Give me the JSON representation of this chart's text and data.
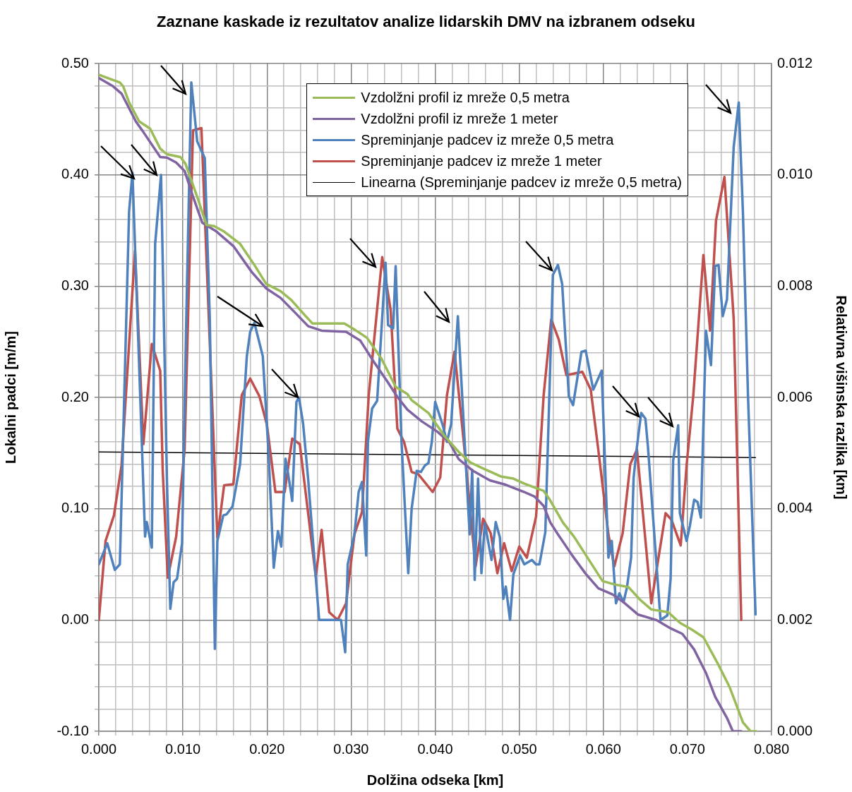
{
  "chart_data": {
    "type": "line",
    "title": "Zaznane kaskade iz rezultatov analize lidarskih DMV na izbranem odseku",
    "xlabel": "Dolžina odseka [km]",
    "ylabel": "Lokalni padci [m/m]",
    "y2label": "Relativna višinska razlika [km]",
    "xlim": [
      0,
      0.08
    ],
    "xticks": [
      {
        "value": 0,
        "label": "0.000"
      },
      {
        "value": 0.002,
        "label": null
      },
      {
        "value": 0.004,
        "label": null
      },
      {
        "value": 0.006,
        "label": null
      },
      {
        "value": 0.008,
        "label": null
      },
      {
        "value": 0.01,
        "label": "0.010"
      },
      {
        "value": 0.012,
        "label": null
      },
      {
        "value": 0.014,
        "label": null
      },
      {
        "value": 0.016,
        "label": null
      },
      {
        "value": 0.018,
        "label": null
      },
      {
        "value": 0.02,
        "label": "0.020"
      },
      {
        "value": 0.022,
        "label": null
      },
      {
        "value": 0.024,
        "label": null
      },
      {
        "value": 0.026,
        "label": null
      },
      {
        "value": 0.028,
        "label": null
      },
      {
        "value": 0.03,
        "label": "0.030"
      },
      {
        "value": 0.032,
        "label": null
      },
      {
        "value": 0.034,
        "label": null
      },
      {
        "value": 0.036,
        "label": null
      },
      {
        "value": 0.038,
        "label": null
      },
      {
        "value": 0.04,
        "label": "0.040"
      },
      {
        "value": 0.042,
        "label": null
      },
      {
        "value": 0.044,
        "label": null
      },
      {
        "value": 0.046,
        "label": null
      },
      {
        "value": 0.048,
        "label": null
      },
      {
        "value": 0.05,
        "label": "0.050"
      },
      {
        "value": 0.052,
        "label": null
      },
      {
        "value": 0.054,
        "label": null
      },
      {
        "value": 0.056,
        "label": null
      },
      {
        "value": 0.058,
        "label": null
      },
      {
        "value": 0.06,
        "label": "0.060"
      },
      {
        "value": 0.062,
        "label": null
      },
      {
        "value": 0.064,
        "label": null
      },
      {
        "value": 0.066,
        "label": null
      },
      {
        "value": 0.068,
        "label": null
      },
      {
        "value": 0.07,
        "label": "0.070"
      },
      {
        "value": 0.072,
        "label": null
      },
      {
        "value": 0.074,
        "label": null
      },
      {
        "value": 0.076,
        "label": null
      },
      {
        "value": 0.078,
        "label": null
      },
      {
        "value": 0.08,
        "label": "0.080"
      }
    ],
    "ylim": [
      -0.1,
      0.5
    ],
    "yticks": [
      {
        "value": -0.1,
        "label": "-0.10"
      },
      {
        "value": -0.08,
        "label": null
      },
      {
        "value": -0.06,
        "label": null
      },
      {
        "value": -0.04,
        "label": null
      },
      {
        "value": -0.02,
        "label": null
      },
      {
        "value": 0,
        "label": "0.00"
      },
      {
        "value": 0.02,
        "label": null
      },
      {
        "value": 0.04,
        "label": null
      },
      {
        "value": 0.06,
        "label": null
      },
      {
        "value": 0.08,
        "label": null
      },
      {
        "value": 0.1,
        "label": "0.10"
      },
      {
        "value": 0.12,
        "label": null
      },
      {
        "value": 0.14,
        "label": null
      },
      {
        "value": 0.16,
        "label": null
      },
      {
        "value": 0.18,
        "label": null
      },
      {
        "value": 0.2,
        "label": "0.20"
      },
      {
        "value": 0.22,
        "label": null
      },
      {
        "value": 0.24,
        "label": null
      },
      {
        "value": 0.26,
        "label": null
      },
      {
        "value": 0.28,
        "label": null
      },
      {
        "value": 0.3,
        "label": "0.30"
      },
      {
        "value": 0.32,
        "label": null
      },
      {
        "value": 0.34,
        "label": null
      },
      {
        "value": 0.36,
        "label": null
      },
      {
        "value": 0.38,
        "label": null
      },
      {
        "value": 0.4,
        "label": "0.40"
      },
      {
        "value": 0.42,
        "label": null
      },
      {
        "value": 0.44,
        "label": null
      },
      {
        "value": 0.46,
        "label": null
      },
      {
        "value": 0.48,
        "label": null
      },
      {
        "value": 0.5,
        "label": "0.50"
      }
    ],
    "y2lim": [
      0,
      0.012
    ],
    "y2ticks": [
      {
        "value": 0,
        "label": "0.000"
      },
      {
        "value": 0.002,
        "label": "0.002"
      },
      {
        "value": 0.004,
        "label": "0.004"
      },
      {
        "value": 0.006,
        "label": "0.006"
      },
      {
        "value": 0.008,
        "label": "0.008"
      },
      {
        "value": 0.01,
        "label": "0.010"
      },
      {
        "value": 0.012,
        "label": "0.012"
      }
    ],
    "grid": true,
    "legend": "top right",
    "marker": "none",
    "series": [
      {
        "name": "Vzdolžni profil iz mreže 0,5 metra",
        "color": "#9bbb59",
        "axis": "y2",
        "x": [
          0,
          0.0025,
          0.0029,
          0.0036,
          0.0048,
          0.0061,
          0.0073,
          0.0081,
          0.0097,
          0.0103,
          0.0118,
          0.0128,
          0.0137,
          0.0149,
          0.0168,
          0.0185,
          0.0199,
          0.0216,
          0.0229,
          0.0246,
          0.0254,
          0.0292,
          0.0305,
          0.0319,
          0.0336,
          0.0353,
          0.0367,
          0.0372,
          0.0392,
          0.0411,
          0.0428,
          0.0442,
          0.0456,
          0.0478,
          0.0493,
          0.0506,
          0.0529,
          0.0536,
          0.0552,
          0.0565,
          0.0585,
          0.0599,
          0.0613,
          0.063,
          0.0644,
          0.0657,
          0.0677,
          0.0691,
          0.0705,
          0.0719,
          0.0736,
          0.075,
          0.0766,
          0.0775,
          0.0782
        ],
        "values": [
          0.0118,
          0.01166,
          0.01159,
          0.0113,
          0.01096,
          0.01083,
          0.01047,
          0.01037,
          0.01032,
          0.0102,
          0.00956,
          0.0091,
          0.00908,
          0.00898,
          0.00876,
          0.00838,
          0.00804,
          0.00791,
          0.00775,
          0.00746,
          0.00733,
          0.00733,
          0.00721,
          0.00707,
          0.0067,
          0.00619,
          0.00606,
          0.00595,
          0.00572,
          0.00531,
          0.00502,
          0.00483,
          0.00473,
          0.00458,
          0.00454,
          0.00445,
          0.00432,
          0.00417,
          0.00375,
          0.0035,
          0.00303,
          0.0027,
          0.00264,
          0.00259,
          0.00236,
          0.00219,
          0.00214,
          0.00195,
          0.00183,
          0.00169,
          0.00122,
          0.0008,
          0.00016,
          0,
          0
        ]
      },
      {
        "name": "Vzdolžni profil iz mreže 1 meter",
        "color": "#8064a2",
        "axis": "y2",
        "x": [
          0,
          0.0017,
          0.0027,
          0.0044,
          0.0052,
          0.0073,
          0.0081,
          0.0092,
          0.0102,
          0.0112,
          0.0123,
          0.014,
          0.016,
          0.0182,
          0.0199,
          0.0216,
          0.0233,
          0.0249,
          0.0265,
          0.0294,
          0.0311,
          0.0327,
          0.0342,
          0.0355,
          0.0367,
          0.0384,
          0.0403,
          0.0417,
          0.0428,
          0.0445,
          0.0465,
          0.0484,
          0.0506,
          0.0518,
          0.0529,
          0.0537,
          0.0546,
          0.0563,
          0.0579,
          0.0594,
          0.0611,
          0.0624,
          0.0641,
          0.0663,
          0.068,
          0.0694,
          0.0708,
          0.0722,
          0.0733,
          0.0747,
          0.0754,
          0.0764
        ],
        "values": [
          0.01174,
          0.01159,
          0.01146,
          0.01096,
          0.01079,
          0.01032,
          0.01031,
          0.01022,
          0.01007,
          0.00961,
          0.00914,
          0.00898,
          0.00872,
          0.00825,
          0.00796,
          0.00779,
          0.00753,
          0.00728,
          0.0072,
          0.00718,
          0.00702,
          0.00664,
          0.00631,
          0.00601,
          0.00578,
          0.00557,
          0.00538,
          0.00519,
          0.00489,
          0.00468,
          0.00451,
          0.00443,
          0.0043,
          0.00422,
          0.00405,
          0.00375,
          0.00354,
          0.00316,
          0.00283,
          0.00257,
          0.00246,
          0.00232,
          0.0021,
          0.002,
          0.00185,
          0.00175,
          0.00147,
          0.00105,
          0.00062,
          0.00024,
          0,
          0
        ]
      },
      {
        "name": "Spreminjanje padcev iz mreže 0,5 metra",
        "color": "#4f81bd",
        "x": [
          0,
          0.001,
          0.0019,
          0.0025,
          0.0036,
          0.004,
          0.0055,
          0.0057,
          0.0063,
          0.0067,
          0.0074,
          0.0081,
          0.0085,
          0.0089,
          0.0093,
          0.0099,
          0.0104,
          0.011,
          0.0117,
          0.0126,
          0.0132,
          0.0138,
          0.0141,
          0.0148,
          0.0152,
          0.0159,
          0.0168,
          0.0176,
          0.018,
          0.0185,
          0.0195,
          0.0202,
          0.0208,
          0.0213,
          0.0217,
          0.0222,
          0.0225,
          0.023,
          0.0235,
          0.0238,
          0.0243,
          0.0249,
          0.0262,
          0.0288,
          0.0293,
          0.0296,
          0.0304,
          0.0309,
          0.0313,
          0.0318,
          0.032,
          0.0325,
          0.0331,
          0.0341,
          0.0344,
          0.035,
          0.0353,
          0.036,
          0.0368,
          0.0372,
          0.0378,
          0.0383,
          0.0388,
          0.0392,
          0.0396,
          0.04,
          0.0409,
          0.0414,
          0.0419,
          0.0427,
          0.0441,
          0.0444,
          0.0447,
          0.0451,
          0.0455,
          0.0459,
          0.0467,
          0.0472,
          0.0477,
          0.0481,
          0.0484,
          0.0489,
          0.0493,
          0.0501,
          0.0506,
          0.0515,
          0.052,
          0.0524,
          0.0531,
          0.054,
          0.0546,
          0.0551,
          0.0559,
          0.0564,
          0.0574,
          0.0579,
          0.0588,
          0.0598,
          0.0606,
          0.061,
          0.0615,
          0.0619,
          0.0624,
          0.0628,
          0.0633,
          0.0636,
          0.064,
          0.0645,
          0.065,
          0.0653,
          0.0668,
          0.0676,
          0.068,
          0.0683,
          0.0689,
          0.0691,
          0.0699,
          0.0703,
          0.0708,
          0.0712,
          0.0716,
          0.0722,
          0.0728,
          0.0733,
          0.0737,
          0.0742,
          0.0747,
          0.0755,
          0.0761,
          0.0766,
          0.0772,
          0.0781
        ],
        "values": [
          0.05,
          0.069,
          0.045,
          0.05,
          0.367,
          0.402,
          0.075,
          0.088,
          0.065,
          0.338,
          0.4,
          0.126,
          0.01,
          0.034,
          0.037,
          0.069,
          0.27,
          0.483,
          0.43,
          0.415,
          0.27,
          -0.026,
          0.071,
          0.094,
          0.095,
          0.102,
          0.14,
          0.237,
          0.259,
          0.267,
          0.237,
          0.148,
          0.047,
          0.08,
          0.066,
          0.145,
          0.132,
          0.107,
          0.196,
          0.2,
          0.176,
          0.126,
          0,
          0,
          -0.029,
          0.05,
          0.077,
          0.115,
          0.124,
          0.058,
          0.16,
          0.19,
          0.197,
          0.321,
          0.265,
          0.262,
          0.318,
          0.16,
          0.042,
          0.1,
          0.134,
          0.133,
          0.139,
          0.141,
          0.16,
          0.196,
          0.175,
          0.16,
          0.176,
          0.273,
          0.077,
          0.135,
          0.036,
          0.127,
          0.042,
          0.087,
          0.054,
          0.088,
          0.074,
          0.019,
          0.03,
          0,
          0.041,
          0.058,
          0.05,
          0.054,
          0.05,
          0.05,
          0.079,
          0.31,
          0.319,
          0.302,
          0.201,
          0.193,
          0.241,
          0.242,
          0.207,
          0.224,
          0.056,
          0.071,
          0.015,
          0.024,
          0.016,
          0.029,
          0.056,
          0.128,
          0.156,
          0.186,
          0.181,
          0.156,
          0,
          0.004,
          0.037,
          0.143,
          0.175,
          0.096,
          0.071,
          0.085,
          0.108,
          0.106,
          0.092,
          0.26,
          0.229,
          0.318,
          0.319,
          0.273,
          0.288,
          0.425,
          0.465,
          0.366,
          0.202,
          0.005
        ]
      },
      {
        "name": "Spreminjanje padcev iz mreže 1 meter",
        "color": "#c0504d",
        "x": [
          0,
          0.0008,
          0.0018,
          0.0027,
          0.0043,
          0.0053,
          0.0063,
          0.0073,
          0.0076,
          0.0082,
          0.0092,
          0.0102,
          0.0112,
          0.0122,
          0.0141,
          0.0149,
          0.016,
          0.017,
          0.018,
          0.0191,
          0.02,
          0.021,
          0.0221,
          0.023,
          0.0239,
          0.0258,
          0.0265,
          0.0274,
          0.0284,
          0.0294,
          0.0304,
          0.0313,
          0.0321,
          0.0337,
          0.0347,
          0.0355,
          0.0363,
          0.0372,
          0.038,
          0.0397,
          0.0406,
          0.0414,
          0.0423,
          0.0434,
          0.0448,
          0.0457,
          0.0466,
          0.0474,
          0.0482,
          0.0491,
          0.05,
          0.0509,
          0.052,
          0.0529,
          0.0538,
          0.0547,
          0.0556,
          0.0575,
          0.0585,
          0.0594,
          0.0606,
          0.0613,
          0.0623,
          0.0632,
          0.064,
          0.0657,
          0.0674,
          0.0681,
          0.0692,
          0.0699,
          0.0707,
          0.0719,
          0.0727,
          0.0734,
          0.0744,
          0.0755,
          0.0764
        ],
        "values": [
          0,
          0.071,
          0.094,
          0.139,
          0.332,
          0.158,
          0.248,
          0.224,
          0.134,
          0.038,
          0.075,
          0.153,
          0.44,
          0.442,
          0.074,
          0.121,
          0.122,
          0.202,
          0.217,
          0.201,
          0.175,
          0.115,
          0.115,
          0.163,
          0.158,
          0.039,
          0.081,
          0.007,
          0,
          0.015,
          0.077,
          0.097,
          0.202,
          0.326,
          0.279,
          0.172,
          0.16,
          0.133,
          0.131,
          0.115,
          0.128,
          0.202,
          0.241,
          0.16,
          0.048,
          0.091,
          0.078,
          0.042,
          0.069,
          0.044,
          0.066,
          0.056,
          0.093,
          0.202,
          0.27,
          0.252,
          0.22,
          0.223,
          0.207,
          0.153,
          0.077,
          0.048,
          0.078,
          0.14,
          0.153,
          0.015,
          0.096,
          0.09,
          0.067,
          0.139,
          0.202,
          0.328,
          0.26,
          0.359,
          0.398,
          0.271,
          0
        ]
      },
      {
        "name": "Linearna (Spreminjanje padcev iz mreže 0,5 metra)",
        "color": "#000000",
        "x": [
          0,
          0.0781
        ],
        "values": [
          0.151,
          0.146
        ]
      }
    ]
  }
}
